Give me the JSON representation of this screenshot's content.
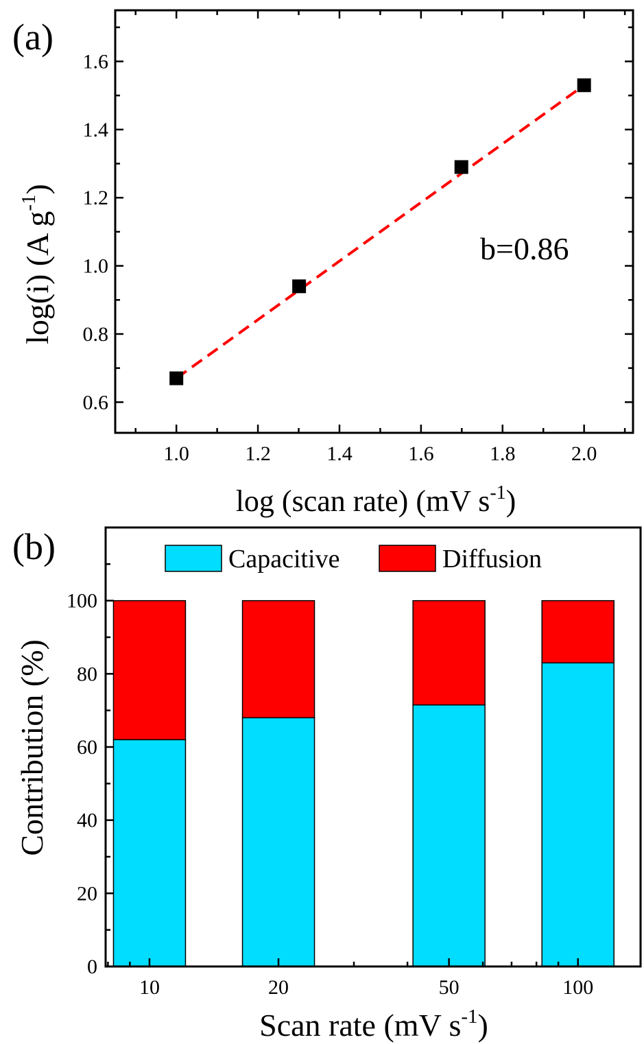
{
  "chart_data": [
    {
      "panel_label": "(a)",
      "type": "scatter",
      "xlabel": "log (scan rate) (mV s",
      "xlabel_sup": "-1",
      "xlabel_tail": ")",
      "ylabel": "log(i) (A g",
      "ylabel_sup": "-1",
      "ylabel_tail": ")",
      "xlim": [
        0.85,
        2.12
      ],
      "ylim": [
        0.51,
        1.75
      ],
      "xticks": [
        "1.0",
        "1.2",
        "1.4",
        "1.6",
        "1.8",
        "2.0"
      ],
      "yticks": [
        "0.6",
        "0.8",
        "1.0",
        "1.2",
        "1.4",
        "1.6"
      ],
      "points": [
        {
          "x": 1.0,
          "y": 0.67
        },
        {
          "x": 1.301,
          "y": 0.94
        },
        {
          "x": 1.699,
          "y": 1.29
        },
        {
          "x": 2.0,
          "y": 1.53
        }
      ],
      "fit_line": {
        "x": [
          1.0,
          2.0
        ],
        "y": [
          0.67,
          1.53
        ],
        "color": "#ff0000",
        "style": "dashed"
      },
      "annotation": "b=0.86",
      "marker_color": "#000000"
    },
    {
      "panel_label": "(b)",
      "type": "bar",
      "stacked": true,
      "xlabel": "Scan rate (mV s",
      "xlabel_sup": "-1",
      "xlabel_tail": ")",
      "ylabel": "Contribution (%)",
      "xscale": "log",
      "xlim": [
        7.9,
        140
      ],
      "ylim": [
        0,
        120
      ],
      "yticks": [
        "0",
        "20",
        "40",
        "60",
        "80",
        "100"
      ],
      "categories": [
        "10",
        "20",
        "50",
        "100"
      ],
      "series": [
        {
          "name": "Capacitive",
          "color": "#00ddff",
          "values": [
            62,
            68,
            71.5,
            83
          ]
        },
        {
          "name": "Diffusion",
          "color": "#ff0000",
          "values": [
            38,
            32,
            28.5,
            17
          ]
        }
      ],
      "legend_position": "top"
    }
  ]
}
